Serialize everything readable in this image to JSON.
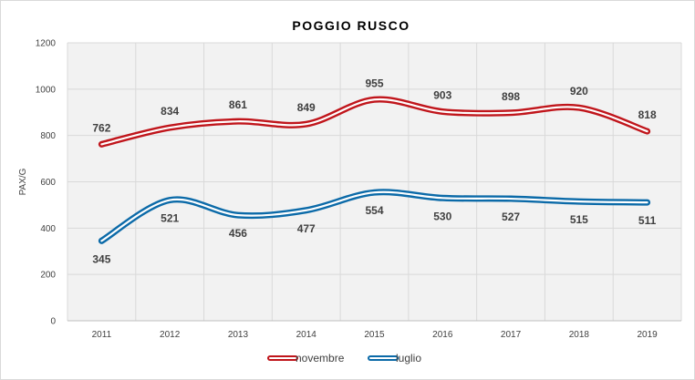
{
  "chart_data": {
    "type": "line",
    "title": "POGGIO RUSCO",
    "xlabel": "",
    "ylabel": "PAX/G",
    "categories": [
      "2011",
      "2012",
      "2013",
      "2014",
      "2015",
      "2016",
      "2017",
      "2018",
      "2019"
    ],
    "ylim": [
      0,
      1200
    ],
    "yticks": [
      0,
      200,
      400,
      600,
      800,
      1000,
      1200
    ],
    "grid": true,
    "smooth": true,
    "legend_position": "bottom",
    "series": [
      {
        "name": "novembre",
        "color": "#c0151b",
        "values": [
          762,
          834,
          861,
          849,
          955,
          903,
          898,
          920,
          818
        ]
      },
      {
        "name": "luglio",
        "color": "#0b6aa8",
        "values": [
          345,
          521,
          456,
          477,
          554,
          530,
          527,
          515,
          511
        ]
      }
    ]
  }
}
